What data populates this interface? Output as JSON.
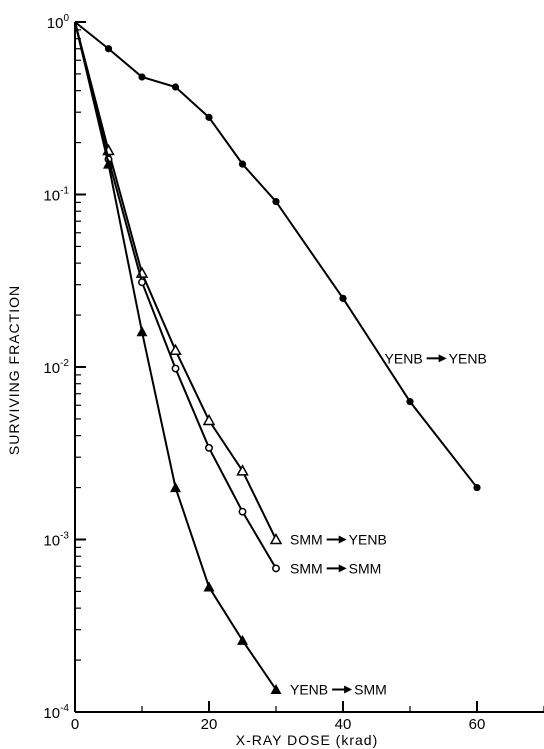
{
  "chart_data": {
    "type": "line",
    "title": "",
    "xlabel": "X-RAY DOSE (krad)",
    "ylabel": "SURVIVING FRACTION",
    "xlim": [
      0,
      70
    ],
    "ylim": [
      0.0001,
      1
    ],
    "yscale": "log",
    "x_ticks": [
      {
        "value": 0,
        "label": "0"
      },
      {
        "value": 20,
        "label": "20"
      },
      {
        "value": 40,
        "label": "40"
      },
      {
        "value": 60,
        "label": "60"
      }
    ],
    "y_ticks": [
      {
        "value": 1,
        "base": "10",
        "exp": "0"
      },
      {
        "value": 0.1,
        "base": "10",
        "exp": "-1"
      },
      {
        "value": 0.01,
        "base": "10",
        "exp": "-2"
      },
      {
        "value": 0.001,
        "base": "10",
        "exp": "-3"
      },
      {
        "value": 0.0001,
        "base": "10",
        "exp": "-4"
      }
    ],
    "grid": false,
    "series": [
      {
        "name": "YENB → YENB",
        "label_parts": [
          "YENB",
          "YENB"
        ],
        "marker": "filled-circle",
        "x": [
          0,
          5,
          10,
          15,
          20,
          25,
          30,
          40,
          50,
          60
        ],
        "y": [
          1.0,
          0.7,
          0.48,
          0.42,
          0.28,
          0.15,
          0.091,
          0.025,
          0.0063,
          0.002
        ]
      },
      {
        "name": "SMM → YENB",
        "label_parts": [
          "SMM",
          "YENB"
        ],
        "marker": "open-triangle",
        "x": [
          0,
          5,
          10,
          15,
          20,
          25,
          30
        ],
        "y": [
          1.0,
          0.18,
          0.035,
          0.0125,
          0.0049,
          0.0025,
          0.001
        ]
      },
      {
        "name": "SMM → SMM",
        "label_parts": [
          "SMM",
          "SMM"
        ],
        "marker": "open-circle",
        "x": [
          0,
          5,
          10,
          15,
          20,
          25,
          30
        ],
        "y": [
          1.0,
          0.16,
          0.031,
          0.0098,
          0.0034,
          0.00145,
          0.00068
        ]
      },
      {
        "name": "YENB → SMM",
        "label_parts": [
          "YENB",
          "SMM"
        ],
        "marker": "filled-triangle",
        "x": [
          0,
          5,
          10,
          15,
          20,
          25,
          30
        ],
        "y": [
          1.0,
          0.15,
          0.016,
          0.002,
          0.00053,
          0.00026,
          0.000135
        ]
      }
    ]
  }
}
